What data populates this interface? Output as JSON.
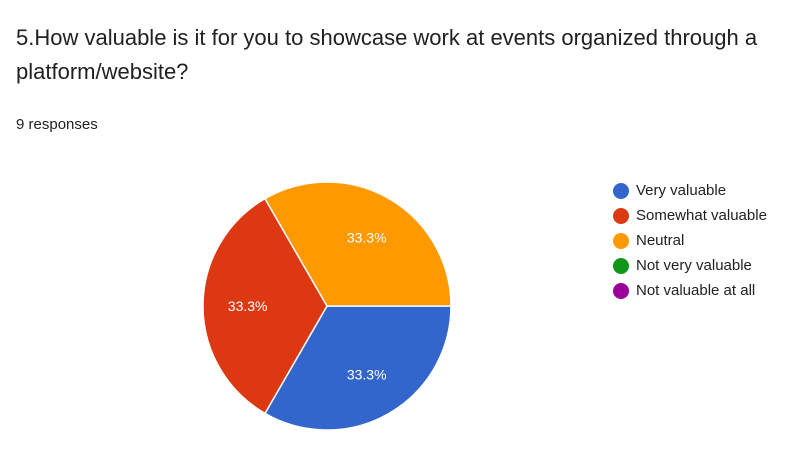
{
  "question": "5.How valuable is it for you to showcase work at events organized through a platform/website?",
  "responses": "9 responses",
  "chart_data": {
    "type": "pie",
    "categories": [
      "Very valuable",
      "Somewhat valuable",
      "Neutral",
      "Not very valuable",
      "Not valuable at all"
    ],
    "values": [
      3,
      3,
      3,
      0,
      0
    ],
    "labels": [
      "33.3%",
      "33.3%",
      "33.3%",
      "",
      ""
    ],
    "colors": [
      "#3366cc",
      "#dc3912",
      "#ff9900",
      "#109618",
      "#990099"
    ],
    "legend_position": "right"
  }
}
